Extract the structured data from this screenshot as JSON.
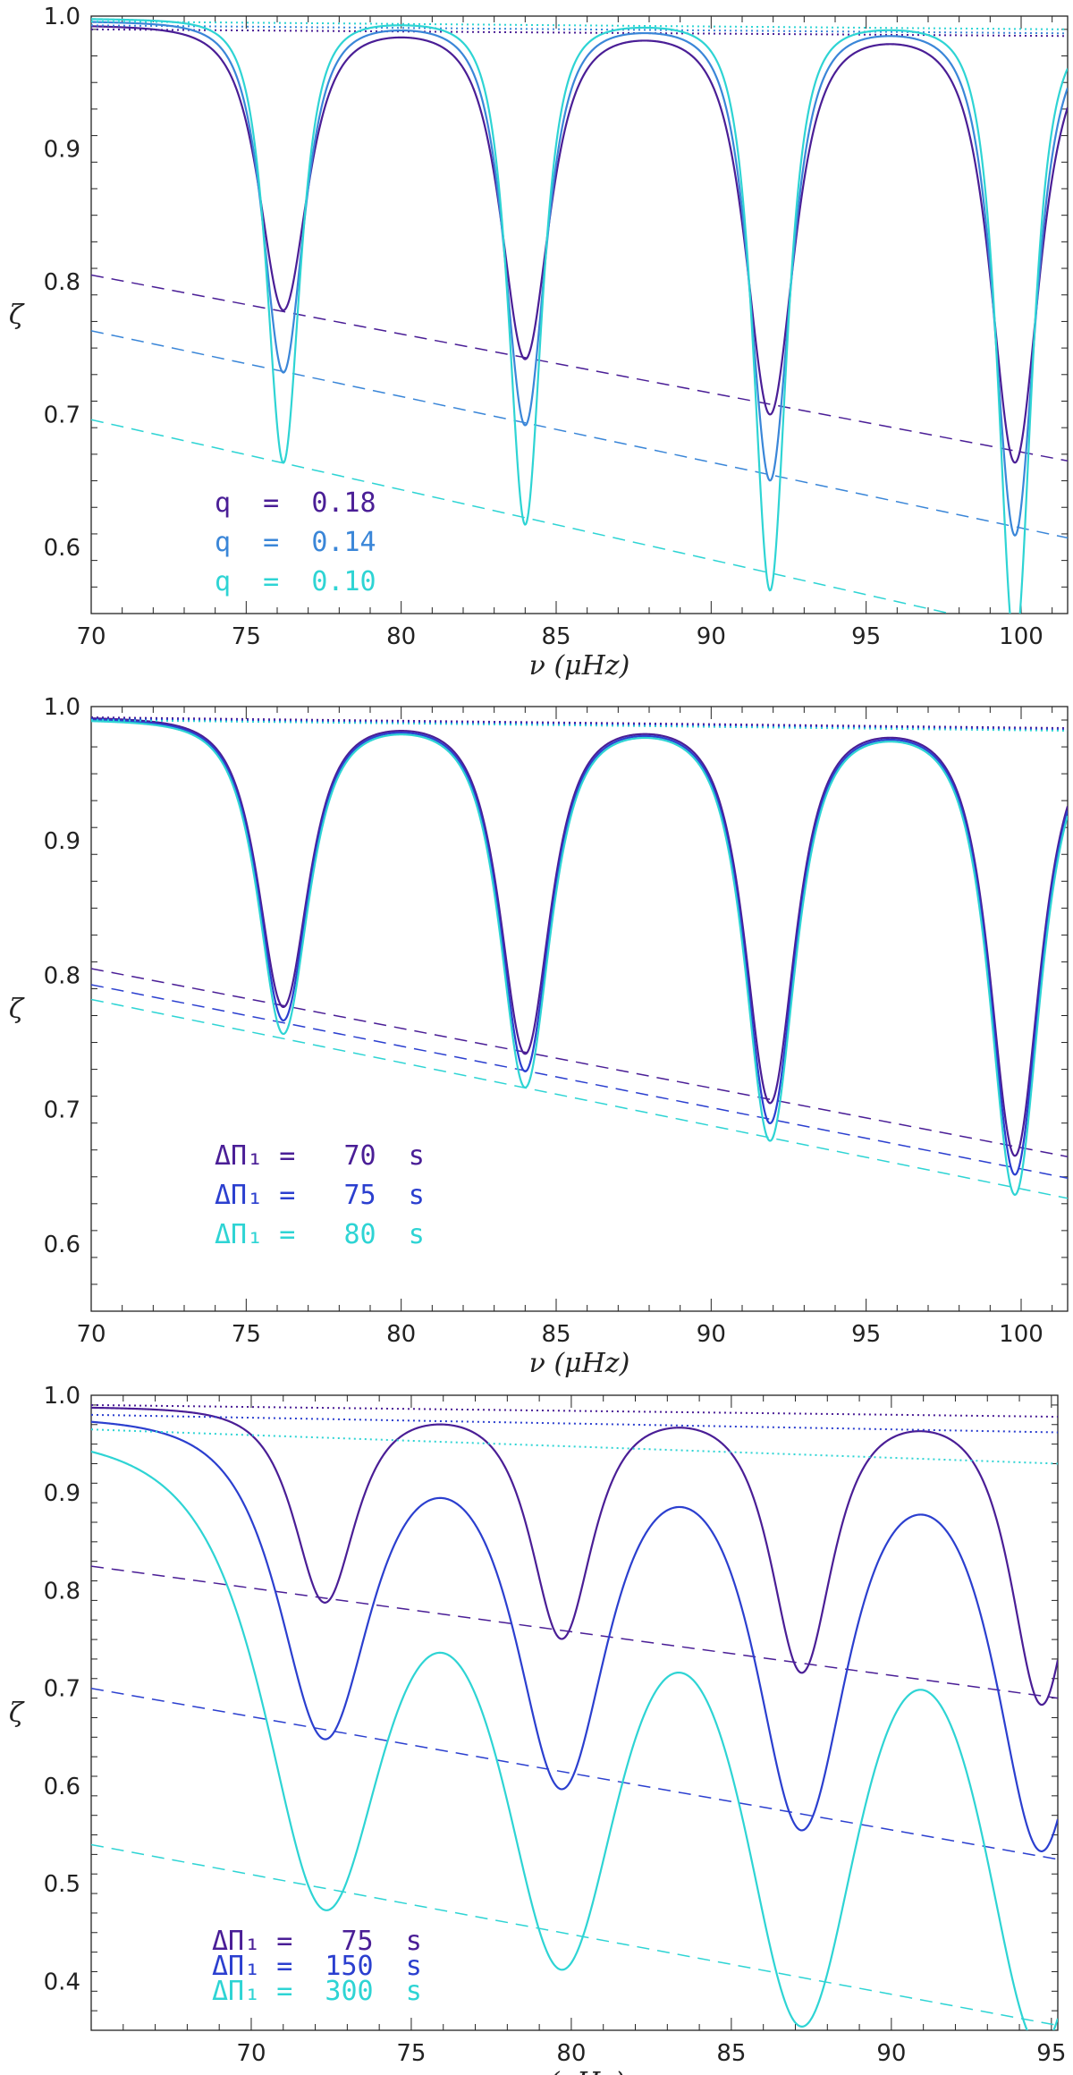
{
  "chart_data": [
    {
      "type": "line",
      "panel": "top",
      "xlabel": "ν (μHz)",
      "ylabel": "ζ",
      "xlim": [
        70,
        101.5
      ],
      "ylim": [
        0.55,
        1.0
      ],
      "x_ticks": [
        70,
        75,
        80,
        85,
        90,
        95,
        100
      ],
      "y_ticks": [
        0.6,
        0.7,
        0.8,
        0.9,
        1.0
      ],
      "x_tick_labels": [
        "70",
        "75",
        "80",
        "85",
        "90",
        "95",
        "100"
      ],
      "y_tick_labels": [
        "0.6",
        "0.7",
        "0.8",
        "0.9",
        "1.0"
      ],
      "dip_centers": [
        76.2,
        84.0,
        91.9,
        99.8
      ],
      "legend_location": "lower-left",
      "series": [
        {
          "name": "q = 0.18",
          "color": "#4a1e96",
          "peak": 0.993,
          "width": 1.3,
          "dip_minima": [
            0.78,
            0.745,
            0.705,
            0.67
          ],
          "upper": [
            0.99,
            0.985
          ],
          "lower": [
            0.805,
            0.665
          ]
        },
        {
          "name": "q = 0.14",
          "color": "#3a86d8",
          "peak": 0.996,
          "width": 1.1,
          "dip_minima": [
            0.733,
            0.695,
            0.655,
            0.615
          ],
          "upper": [
            0.993,
            0.987
          ],
          "lower": [
            0.763,
            0.607
          ]
        },
        {
          "name": "q = 0.10",
          "color": "#2ed4d4",
          "peak": 0.998,
          "width": 0.9,
          "dip_minima": [
            0.665,
            0.62,
            0.572,
            0.53
          ],
          "upper": [
            0.996,
            0.99
          ],
          "lower": [
            0.696,
            0.53
          ]
        }
      ],
      "legend": [
        {
          "label": "q  =  0.18",
          "color": "#4a1e96"
        },
        {
          "label": "q  =  0.14",
          "color": "#3a86d8"
        },
        {
          "label": "q  =  0.10",
          "color": "#2ed4d4"
        }
      ]
    },
    {
      "type": "line",
      "panel": "middle",
      "xlabel": "ν (μHz)",
      "ylabel": "ζ",
      "xlim": [
        70,
        101.5
      ],
      "ylim": [
        0.55,
        1.0
      ],
      "x_ticks": [
        70,
        75,
        80,
        85,
        90,
        95,
        100
      ],
      "y_ticks": [
        0.6,
        0.7,
        0.8,
        0.9,
        1.0
      ],
      "x_tick_labels": [
        "70",
        "75",
        "80",
        "85",
        "90",
        "95",
        "100"
      ],
      "y_tick_labels": [
        "0.6",
        "0.7",
        "0.8",
        "0.9",
        "1.0"
      ],
      "dip_centers": [
        76.2,
        84.0,
        91.9,
        99.8
      ],
      "legend_location": "lower-left",
      "series": [
        {
          "name": "ΔΠ1 = 70 s",
          "color": "#4a1e96",
          "peak": 0.992,
          "width": 1.35,
          "dip_minima": [
            0.778,
            0.745,
            0.71,
            0.672
          ],
          "upper": [
            0.992,
            0.984
          ],
          "lower": [
            0.805,
            0.665
          ]
        },
        {
          "name": "ΔΠ1 = 75 s",
          "color": "#2b3fcf",
          "peak": 0.991,
          "width": 1.35,
          "dip_minima": [
            0.768,
            0.732,
            0.695,
            0.658
          ],
          "upper": [
            0.991,
            0.983
          ],
          "lower": [
            0.793,
            0.649
          ]
        },
        {
          "name": "ΔΠ1 = 80 s",
          "color": "#2ed4d4",
          "peak": 0.99,
          "width": 1.35,
          "dip_minima": [
            0.758,
            0.72,
            0.682,
            0.643
          ],
          "upper": [
            0.99,
            0.982
          ],
          "lower": [
            0.782,
            0.634
          ]
        }
      ],
      "legend": [
        {
          "label": "ΔΠ₁ =   70  s",
          "color": "#4a1e96"
        },
        {
          "label": "ΔΠ₁ =   75  s",
          "color": "#2b3fcf"
        },
        {
          "label": "ΔΠ₁ =   80  s",
          "color": "#2ed4d4"
        }
      ]
    },
    {
      "type": "line",
      "panel": "bottom",
      "xlabel": "ν (μHz)",
      "ylabel": "ζ",
      "xlim": [
        65,
        95.2
      ],
      "ylim": [
        0.35,
        1.0
      ],
      "x_ticks": [
        70,
        75,
        80,
        85,
        90,
        95
      ],
      "y_ticks": [
        0.4,
        0.5,
        0.6,
        0.7,
        0.8,
        0.9,
        1.0
      ],
      "x_tick_labels": [
        "70",
        "75",
        "80",
        "85",
        "90",
        "95"
      ],
      "y_tick_labels": [
        "0.4",
        "0.5",
        "0.6",
        "0.7",
        "0.8",
        "0.9",
        "1.0"
      ],
      "dip_centers": [
        72.3,
        79.7,
        87.2,
        94.7
      ],
      "legend_location": "lower-left",
      "series": [
        {
          "name": "ΔΠ1 = 75 s",
          "color": "#4a1e96",
          "peak": 0.988,
          "width": 1.6,
          "dip_minima": [
            0.79,
            0.755,
            0.722,
            0.69
          ],
          "upper": [
            0.99,
            0.978
          ],
          "lower": [
            0.825,
            0.69
          ]
        },
        {
          "name": "ΔΠ1 = 150 s",
          "color": "#2b3fcf",
          "peak": 0.978,
          "width": 2.4,
          "dip_minima": [
            0.655,
            0.61,
            0.57,
            0.545
          ],
          "upper": [
            0.98,
            0.962
          ],
          "lower": [
            0.7,
            0.525
          ]
        },
        {
          "name": "ΔΠ1 = 300 s",
          "color": "#2ed4d4",
          "peak": 0.962,
          "width": 3.2,
          "dip_minima": [
            0.495,
            0.453,
            0.398,
            0.36
          ],
          "upper": [
            0.965,
            0.93
          ],
          "lower": [
            0.54,
            0.355
          ]
        }
      ],
      "legend": [
        {
          "label": "ΔΠ₁ =   75  s",
          "color": "#4a1e96"
        },
        {
          "label": "ΔΠ₁ =  150  s",
          "color": "#2b3fcf"
        },
        {
          "label": "ΔΠ₁ =  300  s",
          "color": "#2ed4d4"
        }
      ]
    }
  ]
}
